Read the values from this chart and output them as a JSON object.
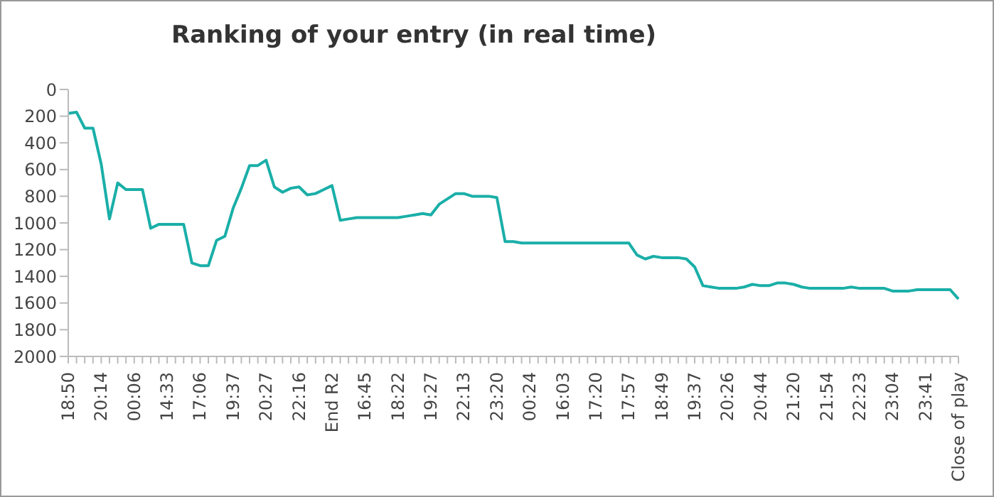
{
  "chart_data": {
    "type": "line",
    "title": "Ranking of your entry (in real time)",
    "categories": [
      "18:50",
      null,
      null,
      null,
      "20:14",
      null,
      null,
      null,
      "00:06",
      null,
      null,
      null,
      "14:33",
      null,
      null,
      null,
      "17:06",
      null,
      null,
      null,
      "19:37",
      null,
      null,
      null,
      "20:27",
      null,
      null,
      null,
      "22:16",
      null,
      null,
      null,
      "End R2",
      null,
      null,
      null,
      "16:45",
      null,
      null,
      null,
      "18:22",
      null,
      null,
      null,
      "19:27",
      null,
      null,
      null,
      "22:13",
      null,
      null,
      null,
      "23:20",
      null,
      null,
      null,
      "00:24",
      null,
      null,
      null,
      "16:03",
      null,
      null,
      null,
      "17:20",
      null,
      null,
      null,
      "17:57",
      null,
      null,
      null,
      "18:49",
      null,
      null,
      null,
      "19:37",
      null,
      null,
      null,
      "20:26",
      null,
      null,
      null,
      "20:44",
      null,
      null,
      null,
      "21:20",
      null,
      null,
      null,
      "21:54",
      null,
      null,
      null,
      "22:23",
      null,
      null,
      null,
      "23:04",
      null,
      null,
      null,
      "23:41",
      null,
      null,
      null,
      "Close of play"
    ],
    "series": [
      {
        "color": "#1aafa8",
        "values": [
          180,
          170,
          290,
          290,
          560,
          970,
          700,
          750,
          750,
          750,
          1040,
          1010,
          1010,
          1010,
          1010,
          1300,
          1320,
          1320,
          1130,
          1100,
          890,
          740,
          570,
          570,
          530,
          730,
          770,
          740,
          730,
          790,
          780,
          750,
          720,
          980,
          970,
          960,
          960,
          960,
          960,
          960,
          960,
          950,
          940,
          930,
          940,
          860,
          820,
          780,
          780,
          800,
          800,
          800,
          810,
          1140,
          1140,
          1150,
          1150,
          1150,
          1150,
          1150,
          1150,
          1150,
          1150,
          1150,
          1150,
          1150,
          1150,
          1150,
          1150,
          1240,
          1270,
          1250,
          1260,
          1260,
          1260,
          1270,
          1330,
          1470,
          1480,
          1490,
          1490,
          1490,
          1480,
          1460,
          1470,
          1470,
          1450,
          1450,
          1460,
          1480,
          1490,
          1490,
          1490,
          1490,
          1490,
          1480,
          1490,
          1490,
          1490,
          1490,
          1510,
          1510,
          1510,
          1500,
          1500,
          1500,
          1500,
          1500,
          1570
        ]
      }
    ],
    "ylim": [
      2000,
      0
    ],
    "yticks": [
      0,
      200,
      400,
      600,
      800,
      1000,
      1200,
      1400,
      1600,
      1800,
      2000
    ],
    "grid": false,
    "legend": false,
    "marker": "none",
    "line_style": "solid"
  }
}
